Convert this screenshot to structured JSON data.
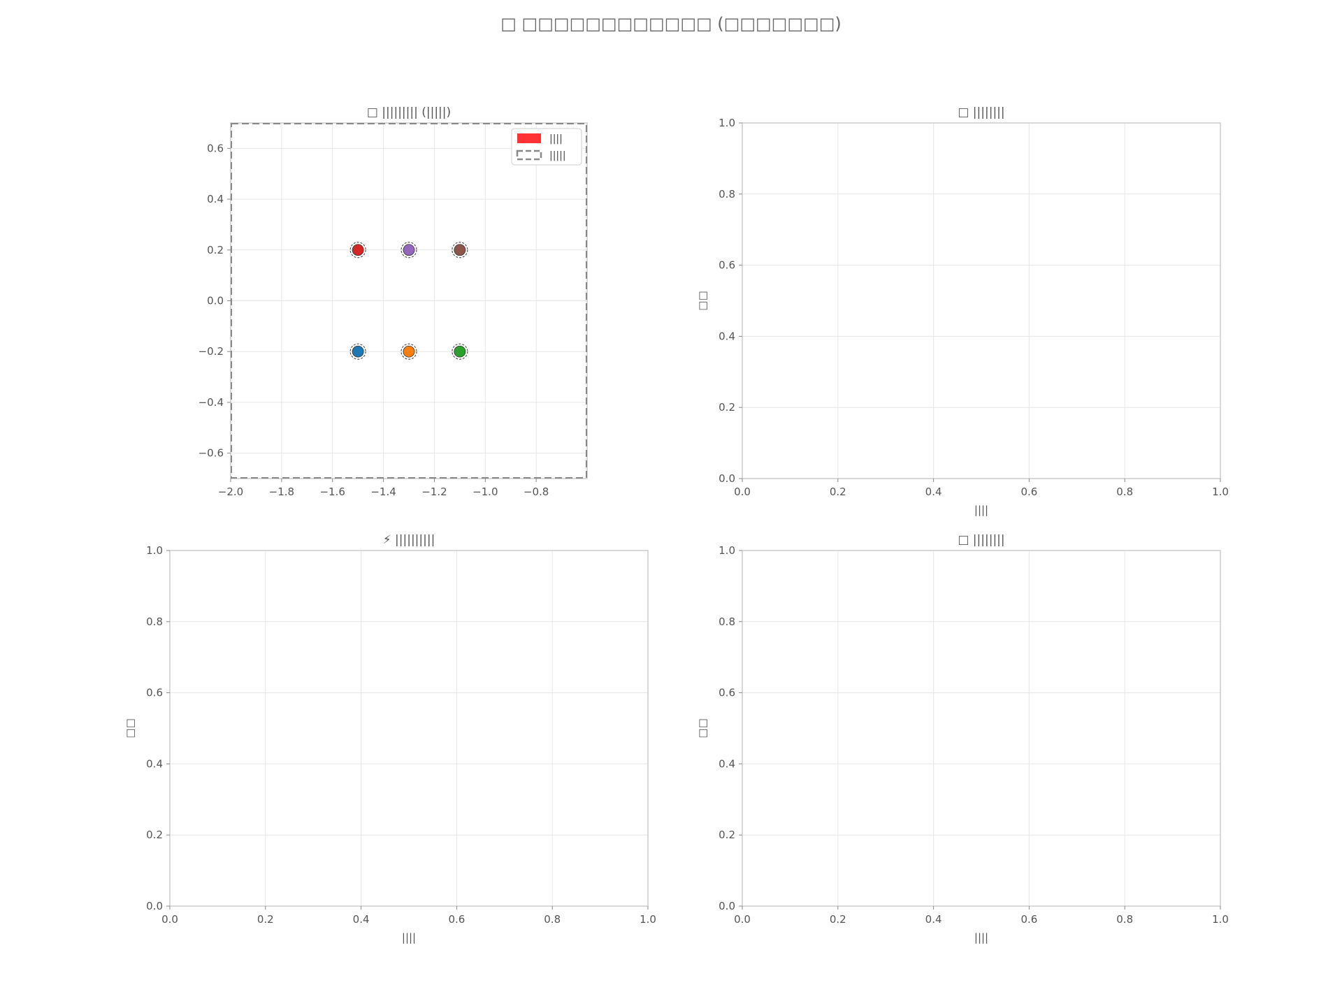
{
  "suptitle": "□ □□□□□□□□□□□□ (□□□□□□□)",
  "colors": {
    "grid": "#e6e6e6",
    "axis": "#cccccc",
    "tick_text": "#555555",
    "legend_box": "#ff3333",
    "legend_dash": "#888888"
  },
  "chart_data": [
    {
      "type": "scatter",
      "title": "□ ||||||||| (|||||)",
      "xlim": [
        -2.0,
        -0.6
      ],
      "ylim": [
        -0.7,
        0.7
      ],
      "xticks": [
        "−2.0",
        "−1.8",
        "−1.6",
        "−1.4",
        "−1.2",
        "−1.0",
        "−0.8"
      ],
      "xtick_values": [
        -2.0,
        -1.8,
        -1.6,
        -1.4,
        -1.2,
        -1.0,
        -0.8
      ],
      "yticks": [
        "−0.6",
        "−0.4",
        "−0.2",
        "0.0",
        "0.2",
        "0.4",
        "0.6"
      ],
      "ytick_values": [
        -0.6,
        -0.4,
        -0.2,
        0.0,
        0.2,
        0.4,
        0.6
      ],
      "xlabel": "",
      "ylabel": "",
      "grid": true,
      "dashed_frame": true,
      "legend_position": "top-right",
      "legend": [
        {
          "label": "||||",
          "style": "filled"
        },
        {
          "label": "|||||",
          "style": "dashed"
        }
      ],
      "points": [
        {
          "x": -1.5,
          "y": 0.2,
          "color": "#d62728"
        },
        {
          "x": -1.3,
          "y": 0.2,
          "color": "#9467bd"
        },
        {
          "x": -1.1,
          "y": 0.2,
          "color": "#8c564b"
        },
        {
          "x": -1.5,
          "y": -0.2,
          "color": "#1f77b4"
        },
        {
          "x": -1.3,
          "y": -0.2,
          "color": "#ff7f0e"
        },
        {
          "x": -1.1,
          "y": -0.2,
          "color": "#2ca02c"
        }
      ]
    },
    {
      "type": "line",
      "title": "□ ||||||||",
      "xlim": [
        0.0,
        1.0
      ],
      "ylim": [
        0.0,
        1.0
      ],
      "xticks": [
        "0.0",
        "0.2",
        "0.4",
        "0.6",
        "0.8",
        "1.0"
      ],
      "yticks": [
        "0.0",
        "0.2",
        "0.4",
        "0.6",
        "0.8",
        "1.0"
      ],
      "xlabel": "||||",
      "ylabel": "□□",
      "grid": true,
      "series": []
    },
    {
      "type": "line",
      "title": "⚡ ||||||||||",
      "xlim": [
        0.0,
        1.0
      ],
      "ylim": [
        0.0,
        1.0
      ],
      "xticks": [
        "0.0",
        "0.2",
        "0.4",
        "0.6",
        "0.8",
        "1.0"
      ],
      "yticks": [
        "0.0",
        "0.2",
        "0.4",
        "0.6",
        "0.8",
        "1.0"
      ],
      "xlabel": "||||",
      "ylabel": "□□",
      "grid": true,
      "series": []
    },
    {
      "type": "line",
      "title": "□ ||||||||",
      "xlim": [
        0.0,
        1.0
      ],
      "ylim": [
        0.0,
        1.0
      ],
      "xticks": [
        "0.0",
        "0.2",
        "0.4",
        "0.6",
        "0.8",
        "1.0"
      ],
      "yticks": [
        "0.0",
        "0.2",
        "0.4",
        "0.6",
        "0.8",
        "1.0"
      ],
      "xlabel": "||||",
      "ylabel": "□□",
      "grid": true,
      "series": []
    }
  ]
}
